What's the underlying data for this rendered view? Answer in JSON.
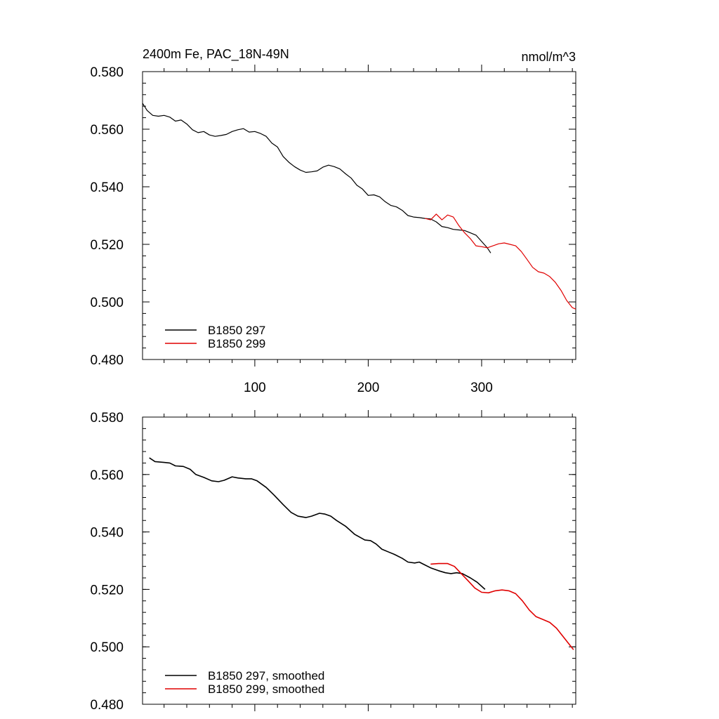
{
  "chart_data": [
    {
      "type": "line",
      "title_left": "2400m Fe, PAC_18N-49N",
      "title_right": "nmol/m^3",
      "xlim": [
        1,
        383
      ],
      "ylim": [
        0.48,
        0.58
      ],
      "x_ticks": [
        100,
        200,
        300
      ],
      "x_tick_labels": [
        "100",
        "200",
        "300"
      ],
      "y_ticks": [
        0.48,
        0.5,
        0.52,
        0.54,
        0.56,
        0.58
      ],
      "y_tick_labels": [
        "0.480",
        "0.500",
        "0.520",
        "0.540",
        "0.560",
        "0.580"
      ],
      "legend_position": "bottom-left",
      "series": [
        {
          "name": "B1850 297",
          "color": "#000000",
          "x": [
            1,
            5,
            10,
            15,
            20,
            25,
            30,
            35,
            40,
            45,
            50,
            55,
            60,
            65,
            70,
            75,
            80,
            85,
            90,
            95,
            100,
            105,
            110,
            115,
            120,
            125,
            130,
            135,
            140,
            145,
            150,
            155,
            160,
            165,
            170,
            175,
            180,
            185,
            190,
            195,
            200,
            205,
            210,
            215,
            220,
            225,
            230,
            235,
            240,
            245,
            250,
            255,
            260,
            265,
            270,
            275,
            280,
            285,
            290,
            295,
            300,
            305,
            308
          ],
          "y": [
            0.569,
            0.5665,
            0.5648,
            0.5645,
            0.5648,
            0.5642,
            0.5628,
            0.5632,
            0.5618,
            0.5598,
            0.5588,
            0.5592,
            0.558,
            0.5575,
            0.5578,
            0.5582,
            0.5592,
            0.5598,
            0.5602,
            0.559,
            0.5592,
            0.5585,
            0.5575,
            0.5552,
            0.5538,
            0.5505,
            0.5485,
            0.547,
            0.5458,
            0.545,
            0.5452,
            0.5455,
            0.5468,
            0.5475,
            0.547,
            0.5462,
            0.5445,
            0.543,
            0.5405,
            0.5392,
            0.537,
            0.5372,
            0.5365,
            0.5348,
            0.5335,
            0.533,
            0.5318,
            0.53,
            0.5295,
            0.5293,
            0.529,
            0.5288,
            0.5278,
            0.5262,
            0.5258,
            0.5252,
            0.525,
            0.5248,
            0.524,
            0.5232,
            0.521,
            0.5188,
            0.517
          ]
        },
        {
          "name": "B1850 299",
          "color": "#e00000",
          "x": [
            250,
            255,
            260,
            265,
            270,
            275,
            280,
            285,
            290,
            295,
            300,
            305,
            310,
            315,
            320,
            325,
            330,
            335,
            340,
            345,
            350,
            355,
            360,
            365,
            370,
            375,
            380,
            383
          ],
          "y": [
            0.529,
            0.5285,
            0.5305,
            0.5285,
            0.5302,
            0.5295,
            0.5265,
            0.524,
            0.522,
            0.5195,
            0.5192,
            0.5188,
            0.5195,
            0.5202,
            0.5205,
            0.52,
            0.5195,
            0.5175,
            0.5148,
            0.512,
            0.5105,
            0.51,
            0.5088,
            0.5068,
            0.504,
            0.5005,
            0.498,
            0.4975
          ]
        }
      ]
    },
    {
      "type": "line",
      "xlim": [
        1,
        383
      ],
      "ylim": [
        0.48,
        0.58
      ],
      "x_ticks": [
        100,
        200,
        300
      ],
      "y_ticks": [
        0.48,
        0.5,
        0.52,
        0.54,
        0.56,
        0.58
      ],
      "y_tick_labels": [
        "0.480",
        "0.500",
        "0.520",
        "0.540",
        "0.560",
        "0.580"
      ],
      "legend_position": "bottom-left",
      "series": [
        {
          "name": "B1850 297, smoothed",
          "color": "#000000",
          "x": [
            7,
            12,
            20,
            25,
            30,
            37,
            43,
            48,
            55,
            62,
            68,
            73,
            80,
            85,
            92,
            97,
            102,
            110,
            117,
            125,
            132,
            138,
            145,
            150,
            157,
            162,
            167,
            172,
            180,
            188,
            197,
            202,
            207,
            212,
            218,
            223,
            230,
            235,
            241,
            245,
            250,
            255,
            262,
            268,
            273,
            278,
            283,
            290,
            296,
            303
          ],
          "y": [
            0.5658,
            0.5645,
            0.5642,
            0.564,
            0.563,
            0.5628,
            0.5618,
            0.56,
            0.559,
            0.5578,
            0.5575,
            0.558,
            0.5592,
            0.5588,
            0.5585,
            0.5585,
            0.5578,
            0.5555,
            0.5528,
            0.5495,
            0.5468,
            0.5455,
            0.545,
            0.5455,
            0.5465,
            0.5462,
            0.5455,
            0.544,
            0.542,
            0.5392,
            0.5372,
            0.537,
            0.5358,
            0.534,
            0.533,
            0.5322,
            0.5308,
            0.5295,
            0.5292,
            0.5295,
            0.5285,
            0.5275,
            0.5265,
            0.5258,
            0.5255,
            0.5258,
            0.5255,
            0.524,
            0.5225,
            0.52
          ]
        },
        {
          "name": "B1850 299, smoothed",
          "color": "#e00000",
          "x": [
            255,
            262,
            270,
            276,
            282,
            288,
            294,
            300,
            306,
            312,
            318,
            324,
            330,
            336,
            342,
            348,
            354,
            360,
            366,
            372,
            377,
            381
          ],
          "y": [
            0.5288,
            0.529,
            0.529,
            0.528,
            0.5255,
            0.523,
            0.5205,
            0.519,
            0.5188,
            0.5195,
            0.5198,
            0.5195,
            0.5185,
            0.516,
            0.5128,
            0.5105,
            0.5095,
            0.5085,
            0.5065,
            0.5035,
            0.501,
            0.499
          ]
        }
      ]
    }
  ]
}
